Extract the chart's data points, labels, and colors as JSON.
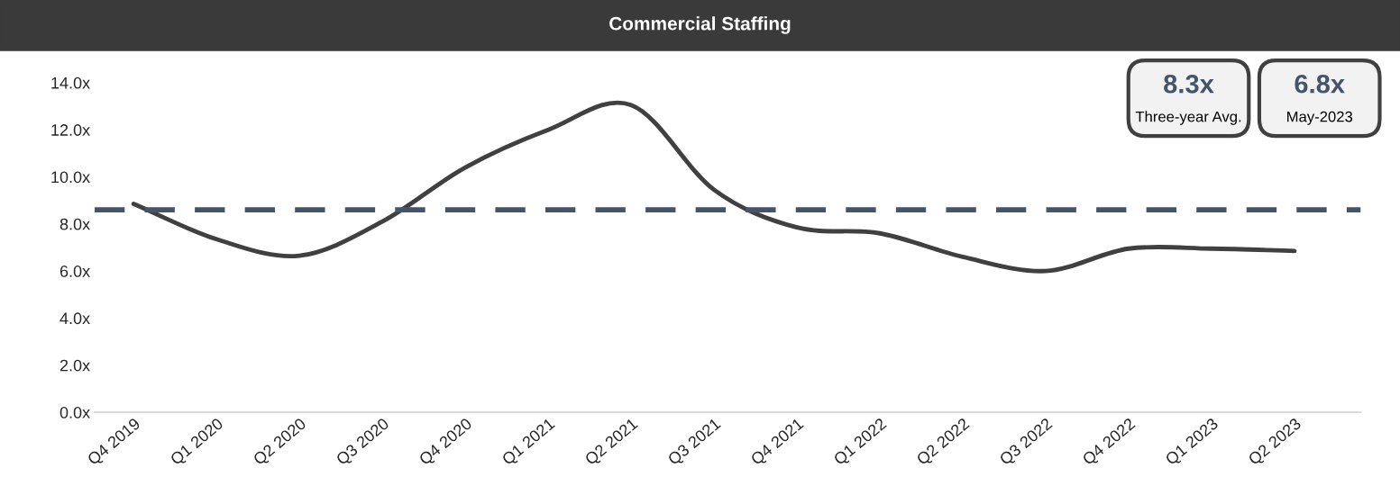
{
  "chart_data": {
    "type": "line",
    "title": "Commercial Staffing",
    "categories": [
      "Q4 2019",
      "Q1 2020",
      "Q2 2020",
      "Q3 2020",
      "Q4 2020",
      "Q1 2021",
      "Q2 2021",
      "Q3 2021",
      "Q4 2021",
      "Q1 2022",
      "Q2 2022",
      "Q3 2022",
      "Q4 2022",
      "Q1 2023",
      "Q2 2023"
    ],
    "series": [
      {
        "color": "#404040",
        "values": [
          8.85,
          7.35,
          6.65,
          8.1,
          10.4,
          12.0,
          13.05,
          9.45,
          7.85,
          7.6,
          6.6,
          6.0,
          6.95,
          6.95,
          6.85
        ]
      }
    ],
    "ylim": [
      0,
      14
    ],
    "yticks": [
      {
        "value": 0,
        "label": "0.0x"
      },
      {
        "value": 2,
        "label": "2.0x"
      },
      {
        "value": 4,
        "label": "4.0x"
      },
      {
        "value": 6,
        "label": "6.0x"
      },
      {
        "value": 8,
        "label": "8.0x"
      },
      {
        "value": 10,
        "label": "10.0x"
      },
      {
        "value": 12,
        "label": "12.0x"
      },
      {
        "value": 14,
        "label": "14.0x"
      }
    ],
    "ref_lines": [
      {
        "axis": "y",
        "value": 8.6,
        "color": "#44546a",
        "line_style": "dashed"
      }
    ],
    "annotations": [
      "8.3x",
      "Three-year Avg.",
      "6.8x",
      "May-2023"
    ],
    "grid": false,
    "legend": false,
    "marker": "none",
    "line_style": "solid"
  }
}
